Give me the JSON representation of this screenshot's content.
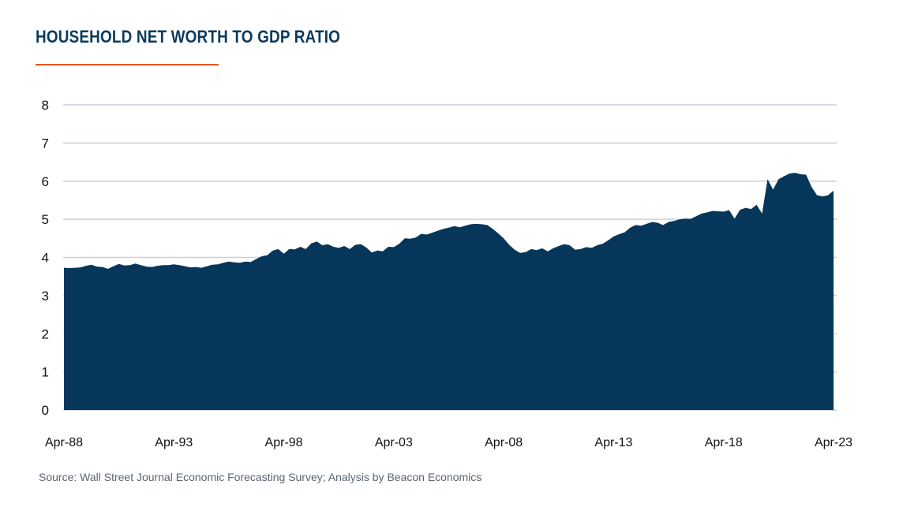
{
  "colors": {
    "title": "#0a3a5c",
    "accent_rule": "#e8541e",
    "area_fill": "#06375a",
    "grid": "#c9d0d6"
  },
  "chart_data": {
    "type": "area",
    "title": "HOUSEHOLD NET WORTH TO GDP RATIO",
    "xlabel": "",
    "ylabel": "",
    "ylim": [
      0,
      8
    ],
    "yticks": [
      "0",
      "1",
      "2",
      "3",
      "4",
      "5",
      "6",
      "7",
      "8"
    ],
    "xticks": [
      "Apr-88",
      "Apr-93",
      "Apr-98",
      "Apr-03",
      "Apr-08",
      "Apr-13",
      "Apr-18",
      "Apr-23"
    ],
    "grid": true,
    "legend": "none",
    "x_start": "1988-04",
    "x_end": "2023-04",
    "series": [
      {
        "values": [
          3.73,
          3.72,
          3.73,
          3.74,
          3.78,
          3.81,
          3.76,
          3.75,
          3.7,
          3.77,
          3.83,
          3.79,
          3.8,
          3.84,
          3.8,
          3.76,
          3.75,
          3.78,
          3.8,
          3.8,
          3.82,
          3.8,
          3.77,
          3.74,
          3.75,
          3.73,
          3.77,
          3.81,
          3.82,
          3.86,
          3.89,
          3.87,
          3.86,
          3.89,
          3.88,
          3.96,
          4.03,
          4.06,
          4.18,
          4.22,
          4.1,
          4.22,
          4.21,
          4.28,
          4.22,
          4.37,
          4.42,
          4.32,
          4.35,
          4.28,
          4.25,
          4.3,
          4.22,
          4.33,
          4.35,
          4.26,
          4.13,
          4.18,
          4.16,
          4.28,
          4.27,
          4.36,
          4.5,
          4.49,
          4.52,
          4.62,
          4.6,
          4.65,
          4.7,
          4.75,
          4.78,
          4.82,
          4.79,
          4.83,
          4.87,
          4.88,
          4.87,
          4.85,
          4.75,
          4.63,
          4.5,
          4.33,
          4.2,
          4.12,
          4.14,
          4.22,
          4.19,
          4.24,
          4.16,
          4.24,
          4.3,
          4.35,
          4.32,
          4.2,
          4.22,
          4.27,
          4.25,
          4.32,
          4.36,
          4.45,
          4.55,
          4.61,
          4.66,
          4.78,
          4.85,
          4.83,
          4.88,
          4.93,
          4.91,
          4.85,
          4.93,
          4.96,
          5.0,
          5.02,
          5.01,
          5.08,
          5.15,
          5.18,
          5.22,
          5.21,
          5.2,
          5.24,
          5.02,
          5.25,
          5.3,
          5.27,
          5.38,
          5.15,
          6.05,
          5.78,
          6.05,
          6.13,
          6.2,
          6.22,
          6.18,
          6.17,
          5.85,
          5.63,
          5.6,
          5.63,
          5.75
        ]
      }
    ]
  },
  "source": "Source: Wall Street Journal Economic Forecasting Survey; Analysis by Beacon Economics"
}
